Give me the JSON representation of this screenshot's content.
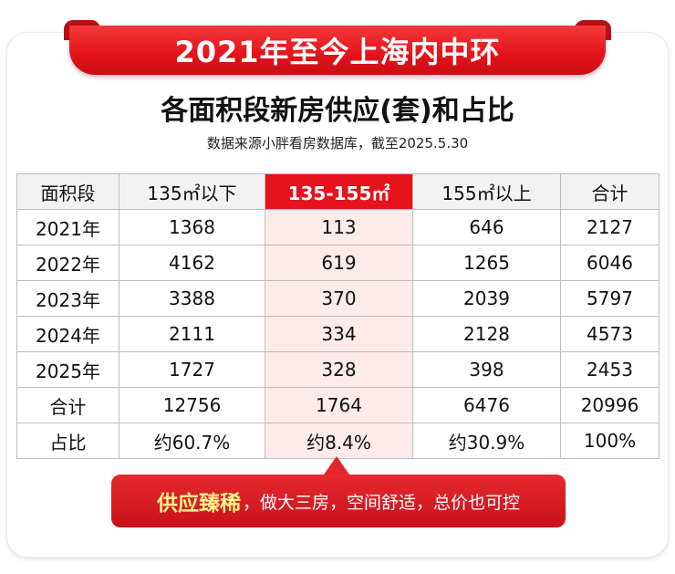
{
  "banner": {
    "text": "2021年至今上海内中环"
  },
  "title": "各面积段新房供应(套)和占比",
  "subtitle": "数据来源小胖看房数据库，截至2025.5.30",
  "table": {
    "headers": [
      "面积段",
      "135㎡以下",
      "135-155㎡",
      "155㎡以上",
      "合计"
    ],
    "rows": [
      [
        "2021年",
        "1368",
        "113",
        "646",
        "2127"
      ],
      [
        "2022年",
        "4162",
        "619",
        "1265",
        "6046"
      ],
      [
        "2023年",
        "3388",
        "370",
        "2039",
        "5797"
      ],
      [
        "2024年",
        "2111",
        "334",
        "2128",
        "4573"
      ],
      [
        "2025年",
        "1727",
        "328",
        "398",
        "2453"
      ],
      [
        "合计",
        "12756",
        "1764",
        "6476",
        "20996"
      ],
      [
        "占比",
        "约60.7%",
        "约8.4%",
        "约30.9%",
        "100%"
      ]
    ]
  },
  "callout": {
    "strong": "供应臻稀",
    "rest": "，做大三房，空间舒适，总价也可控"
  },
  "colors": {
    "accent": "#e6121c",
    "highlight_bg": "#fdeaea",
    "callout_emphasis": "#fff28a"
  }
}
